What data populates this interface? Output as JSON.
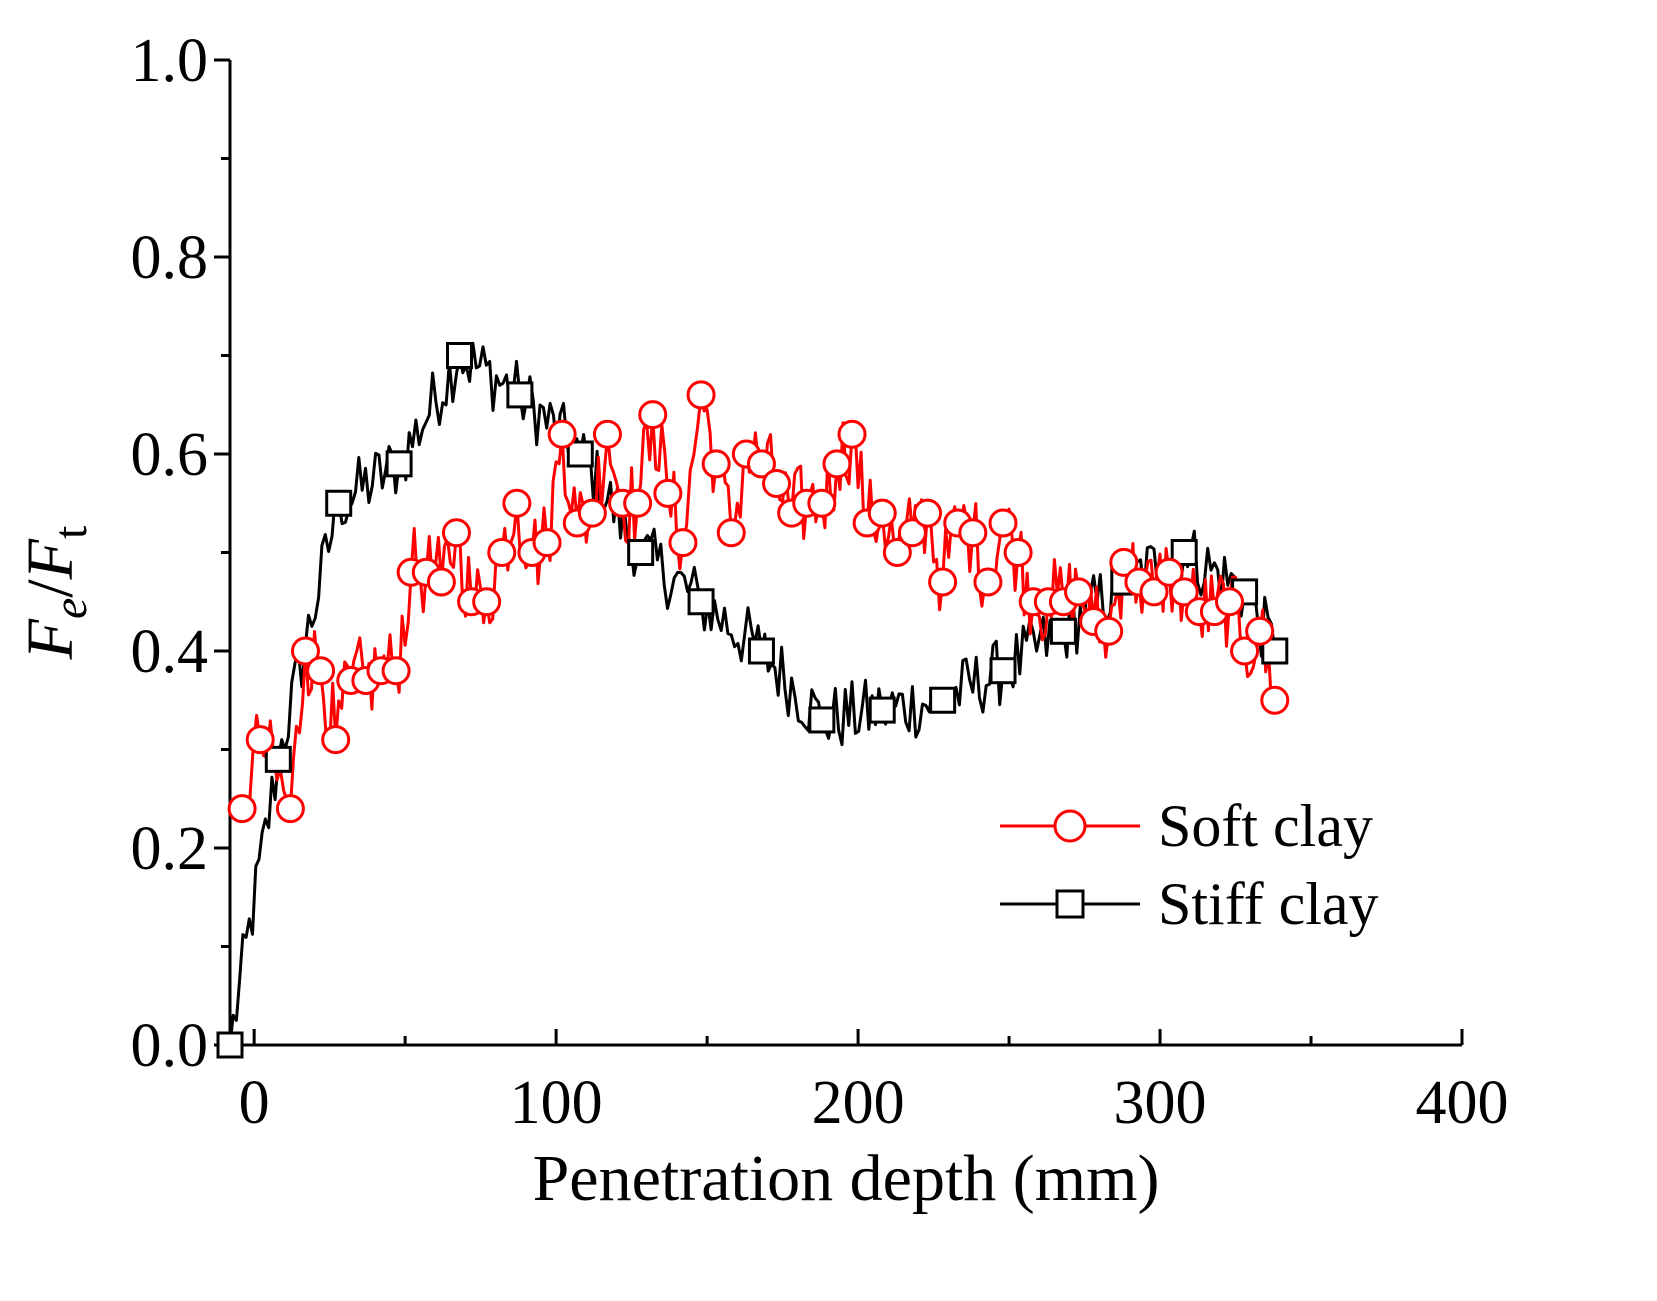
{
  "chart_data": {
    "type": "line",
    "xlabel": "Penetration depth (mm)",
    "ylabel": {
      "base1": "F",
      "sub1": "e",
      "slash": "/",
      "base2": "F",
      "sub2": "t"
    },
    "xlim": [
      -8,
      400
    ],
    "ylim": [
      0,
      1.0
    ],
    "xticks": [
      0,
      100,
      200,
      300,
      400
    ],
    "xtick_labels": [
      "0",
      "100",
      "200",
      "300",
      "400"
    ],
    "yticks": [
      0.0,
      0.2,
      0.4,
      0.6,
      0.8,
      1.0
    ],
    "ytick_labels": [
      "0.0",
      "0.2",
      "0.4",
      "0.6",
      "0.8",
      "1.0"
    ],
    "grid": false,
    "legend_position": "lower-right",
    "series": [
      {
        "name": "Soft clay",
        "color": "#ff0000",
        "marker": "circle",
        "markers": [
          [
            -4,
            0.24
          ],
          [
            2,
            0.31
          ],
          [
            12,
            0.24
          ],
          [
            17,
            0.4
          ],
          [
            22,
            0.38
          ],
          [
            27,
            0.31
          ],
          [
            32,
            0.37
          ],
          [
            37,
            0.37
          ],
          [
            42,
            0.38
          ],
          [
            47,
            0.38
          ],
          [
            52,
            0.48
          ],
          [
            57,
            0.48
          ],
          [
            62,
            0.47
          ],
          [
            67,
            0.52
          ],
          [
            72,
            0.45
          ],
          [
            77,
            0.45
          ],
          [
            82,
            0.5
          ],
          [
            87,
            0.55
          ],
          [
            92,
            0.5
          ],
          [
            97,
            0.51
          ],
          [
            102,
            0.62
          ],
          [
            107,
            0.53
          ],
          [
            112,
            0.54
          ],
          [
            117,
            0.62
          ],
          [
            122,
            0.55
          ],
          [
            127,
            0.55
          ],
          [
            132,
            0.64
          ],
          [
            137,
            0.56
          ],
          [
            142,
            0.51
          ],
          [
            148,
            0.66
          ],
          [
            153,
            0.59
          ],
          [
            158,
            0.52
          ],
          [
            163,
            0.6
          ],
          [
            168,
            0.59
          ],
          [
            173,
            0.57
          ],
          [
            178,
            0.54
          ],
          [
            183,
            0.55
          ],
          [
            188,
            0.55
          ],
          [
            193,
            0.59
          ],
          [
            198,
            0.62
          ],
          [
            203,
            0.53
          ],
          [
            208,
            0.54
          ],
          [
            213,
            0.5
          ],
          [
            218,
            0.52
          ],
          [
            223,
            0.54
          ],
          [
            228,
            0.47
          ],
          [
            233,
            0.53
          ],
          [
            238,
            0.52
          ],
          [
            243,
            0.47
          ],
          [
            248,
            0.53
          ],
          [
            253,
            0.5
          ],
          [
            258,
            0.45
          ],
          [
            263,
            0.45
          ],
          [
            268,
            0.45
          ],
          [
            273,
            0.46
          ],
          [
            278,
            0.43
          ],
          [
            283,
            0.42
          ],
          [
            288,
            0.49
          ],
          [
            293,
            0.47
          ],
          [
            298,
            0.46
          ],
          [
            303,
            0.48
          ],
          [
            308,
            0.46
          ],
          [
            313,
            0.44
          ],
          [
            318,
            0.44
          ],
          [
            323,
            0.45
          ],
          [
            328,
            0.4
          ],
          [
            333,
            0.42
          ],
          [
            338,
            0.35
          ]
        ]
      },
      {
        "name": "Stiff clay",
        "color": "#000000",
        "marker": "square",
        "markers": [
          [
            -8,
            0.0
          ],
          [
            8,
            0.29
          ],
          [
            28,
            0.55
          ],
          [
            48,
            0.59
          ],
          [
            68,
            0.7
          ],
          [
            88,
            0.66
          ],
          [
            108,
            0.6
          ],
          [
            128,
            0.5
          ],
          [
            148,
            0.45
          ],
          [
            168,
            0.4
          ],
          [
            188,
            0.33
          ],
          [
            208,
            0.34
          ],
          [
            228,
            0.35
          ],
          [
            248,
            0.38
          ],
          [
            268,
            0.42
          ],
          [
            288,
            0.47
          ],
          [
            308,
            0.5
          ],
          [
            328,
            0.46
          ],
          [
            338,
            0.4
          ]
        ]
      }
    ]
  }
}
